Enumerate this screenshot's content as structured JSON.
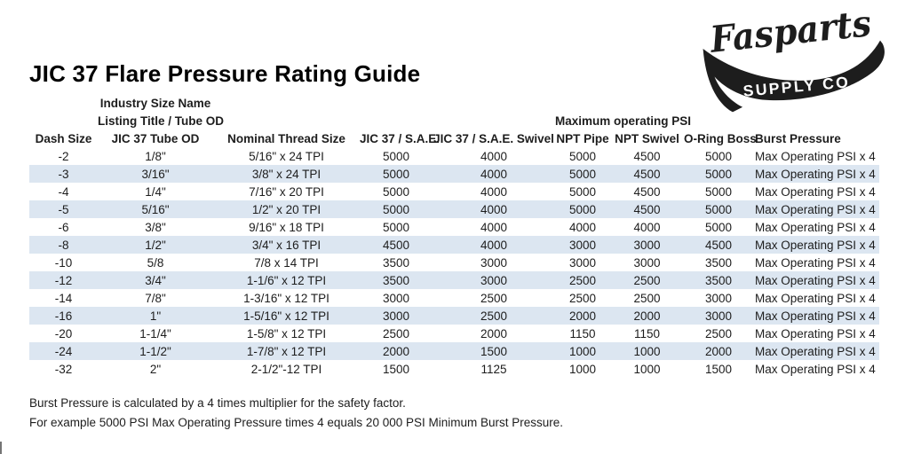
{
  "logo": {
    "brand": "Fasparts",
    "subtext": "SUPPLY CO."
  },
  "title": "JIC 37 Flare Pressure Rating Guide",
  "table": {
    "group_headers": {
      "industry_size_name": "Industry Size Name",
      "listing_title": "Listing Title / Tube OD",
      "max_operating_psi": "Maximum operating PSI"
    },
    "columns": [
      "Dash Size",
      "JIC 37 Tube OD",
      "Nominal Thread Size",
      "JIC 37 / S.A.E.",
      "JIC 37 / S.A.E. Swivel",
      "NPT Pipe",
      "NPT Swivel",
      "O-Ring Boss",
      "Burst Pressure"
    ],
    "rows": [
      [
        "-2",
        "1/8\"",
        "5/16\" x 24 TPI",
        "5000",
        "4000",
        "5000",
        "4500",
        "5000",
        "Max Operating PSI x 4"
      ],
      [
        "-3",
        "3/16\"",
        "3/8\" x 24 TPI",
        "5000",
        "4000",
        "5000",
        "4500",
        "5000",
        "Max Operating PSI x 4"
      ],
      [
        "-4",
        "1/4\"",
        "7/16\" x 20 TPI",
        "5000",
        "4000",
        "5000",
        "4500",
        "5000",
        "Max Operating PSI x 4"
      ],
      [
        "-5",
        "5/16\"",
        "1/2\" x 20 TPI",
        "5000",
        "4000",
        "5000",
        "4500",
        "5000",
        "Max Operating PSI x 4"
      ],
      [
        "-6",
        "3/8\"",
        "9/16\" x 18 TPI",
        "5000",
        "4000",
        "4000",
        "4000",
        "5000",
        "Max Operating PSI x 4"
      ],
      [
        "-8",
        "1/2\"",
        "3/4\" x 16 TPI",
        "4500",
        "4000",
        "3000",
        "3000",
        "4500",
        "Max Operating PSI x 4"
      ],
      [
        "-10",
        "5/8",
        "7/8 x 14 TPI",
        "3500",
        "3000",
        "3000",
        "3000",
        "3500",
        "Max Operating PSI x 4"
      ],
      [
        "-12",
        "3/4\"",
        "1-1/6\" x 12 TPI",
        "3500",
        "3000",
        "2500",
        "2500",
        "3500",
        "Max Operating PSI x 4"
      ],
      [
        "-14",
        "7/8\"",
        "1-3/16\" x 12 TPI",
        "3000",
        "2500",
        "2500",
        "2500",
        "3000",
        "Max Operating PSI x 4"
      ],
      [
        "-16",
        "1\"",
        "1-5/16\" x 12 TPI",
        "3000",
        "2500",
        "2000",
        "2000",
        "3000",
        "Max Operating PSI x 4"
      ],
      [
        "-20",
        "1-1/4\"",
        "1-5/8\" x 12 TPI",
        "2500",
        "2000",
        "1150",
        "1150",
        "2500",
        "Max Operating PSI x 4"
      ],
      [
        "-24",
        "1-1/2\"",
        "1-7/8\" x 12 TPI",
        "2000",
        "1500",
        "1000",
        "1000",
        "2000",
        "Max Operating PSI x 4"
      ],
      [
        "-32",
        "2\"",
        "2-1/2\"-12 TPI",
        "1500",
        "1125",
        "1000",
        "1000",
        "1500",
        "Max Operating PSI x 4"
      ]
    ]
  },
  "footer": {
    "line1": "Burst Pressure is calculated by a 4 times multiplier for the safety factor.",
    "line2": "For example 5000 PSI Max Operating Pressure times 4 equals 20 000 PSI Minimum Burst Pressure."
  },
  "colors": {
    "stripe": "#dce6f1",
    "text": "#1d1d1d",
    "logo_black": "#1d1d1d"
  }
}
